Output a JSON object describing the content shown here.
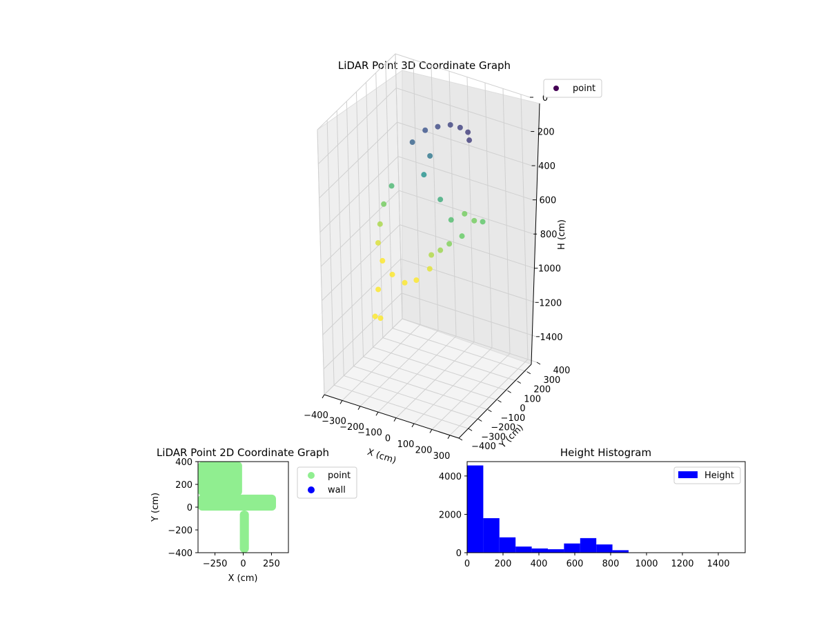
{
  "colors": {
    "point2d": "#90ee90",
    "wall": "#0000ff",
    "hist": "#0000ff",
    "legend_point3d": "#440154",
    "pane": "#f2f2f2",
    "grid": "#cfcfcf"
  },
  "chart_data": [
    {
      "type": "scatter",
      "title": "LiDAR Point 3D Coordinate Graph",
      "xlabel": "X (cm)",
      "ylabel": "Y (cm)",
      "zlabel": "H (cm)",
      "x_ticks": [
        "−400",
        "−300",
        "−200",
        "−100",
        "0",
        "100",
        "200",
        "300"
      ],
      "y_ticks": [
        "−400",
        "−300",
        "−200",
        "−100",
        "0",
        "100",
        "200",
        "300",
        "400"
      ],
      "z_ticks": [
        "0",
        "200",
        "400",
        "600",
        "800",
        "1000",
        "1200",
        "1400"
      ],
      "xlim": [
        -400,
        350
      ],
      "ylim": [
        -400,
        400
      ],
      "zlim": [
        1550,
        0
      ],
      "colormap": "viridis",
      "color_by": "H",
      "legend": [
        {
          "label": "point",
          "color": "#440154"
        }
      ],
      "legend_position": "upper right",
      "grid": true,
      "series": [
        {
          "name": "point",
          "points": [
            {
              "x": -60,
              "y": 200,
              "h": 200
            },
            {
              "x": 0,
              "y": 220,
              "h": 180
            },
            {
              "x": 60,
              "y": 210,
              "h": 170
            },
            {
              "x": 120,
              "y": 180,
              "h": 160
            },
            {
              "x": 160,
              "y": 120,
              "h": 160
            },
            {
              "x": -120,
              "y": 180,
              "h": 230
            },
            {
              "x": -160,
              "y": 120,
              "h": 280
            },
            {
              "x": -80,
              "y": 150,
              "h": 350
            },
            {
              "x": -100,
              "y": 120,
              "h": 450
            },
            {
              "x": 0,
              "y": 100,
              "h": 550
            },
            {
              "x": 80,
              "y": 60,
              "h": 620
            },
            {
              "x": 150,
              "y": 40,
              "h": 680
            },
            {
              "x": 100,
              "y": 0,
              "h": 720
            },
            {
              "x": 60,
              "y": -20,
              "h": 760
            },
            {
              "x": 20,
              "y": -40,
              "h": 790
            },
            {
              "x": -300,
              "y": 150,
              "h": 600
            },
            {
              "x": -330,
              "y": 120,
              "h": 700
            },
            {
              "x": -320,
              "y": 60,
              "h": 780
            },
            {
              "x": -300,
              "y": 0,
              "h": 850
            },
            {
              "x": -250,
              "y": -50,
              "h": 910
            },
            {
              "x": -180,
              "y": -80,
              "h": 950
            },
            {
              "x": -100,
              "y": -100,
              "h": 960
            },
            {
              "x": -40,
              "y": -90,
              "h": 930
            },
            {
              "x": 20,
              "y": -60,
              "h": 860
            },
            {
              "x": -250,
              "y": -100,
              "h": 1050
            },
            {
              "x": -260,
              "y": -120,
              "h": 1200
            },
            {
              "x": -230,
              "y": -120,
              "h": 1200
            },
            {
              "x": 50,
              "y": 250,
              "h": 700
            },
            {
              "x": 120,
              "y": 220,
              "h": 700
            },
            {
              "x": 190,
              "y": 180,
              "h": 660
            }
          ]
        }
      ]
    },
    {
      "type": "scatter",
      "title": "LiDAR Point 2D Coordinate Graph",
      "xlabel": "X (cm)",
      "ylabel": "Y (cm)",
      "x_ticks": [
        "−250",
        "0",
        "250"
      ],
      "y_ticks": [
        "400",
        "200",
        "0",
        "−200",
        "−400"
      ],
      "xlim": [
        -400,
        400
      ],
      "ylim": [
        -400,
        400
      ],
      "legend": [
        {
          "label": "point",
          "color": "#90ee90"
        },
        {
          "label": "wall",
          "color": "#0000ff"
        }
      ],
      "legend_position": "outside right",
      "series": [
        {
          "name": "point",
          "approx_regions": [
            {
              "x_range": [
                -400,
                -10
              ],
              "y_range": [
                100,
                400
              ]
            },
            {
              "x_range": [
                -400,
                290
              ],
              "y_range": [
                -30,
                110
              ]
            },
            {
              "x_range": [
                -30,
                50
              ],
              "y_range": [
                -400,
                -30
              ]
            }
          ]
        },
        {
          "name": "wall",
          "points": []
        }
      ]
    },
    {
      "type": "bar",
      "title": "Height Histogram",
      "xlabel": "",
      "ylabel": "",
      "x_ticks": [
        "0",
        "200",
        "400",
        "600",
        "800",
        "1000",
        "1200",
        "1400"
      ],
      "y_ticks": [
        "0",
        "2000",
        "4000"
      ],
      "xlim": [
        0,
        1550
      ],
      "ylim": [
        0,
        4750
      ],
      "legend": [
        {
          "label": "Height",
          "color": "#0000ff"
        }
      ],
      "legend_position": "upper right",
      "bin_edges": [
        0,
        90,
        180,
        270,
        360,
        450,
        540,
        630,
        720,
        810,
        900,
        990,
        1080,
        1170,
        1260,
        1350,
        1440,
        1530
      ],
      "values": [
        4550,
        1800,
        800,
        320,
        220,
        180,
        480,
        760,
        430,
        130,
        15,
        15,
        10,
        10,
        10,
        10,
        8
      ]
    }
  ]
}
